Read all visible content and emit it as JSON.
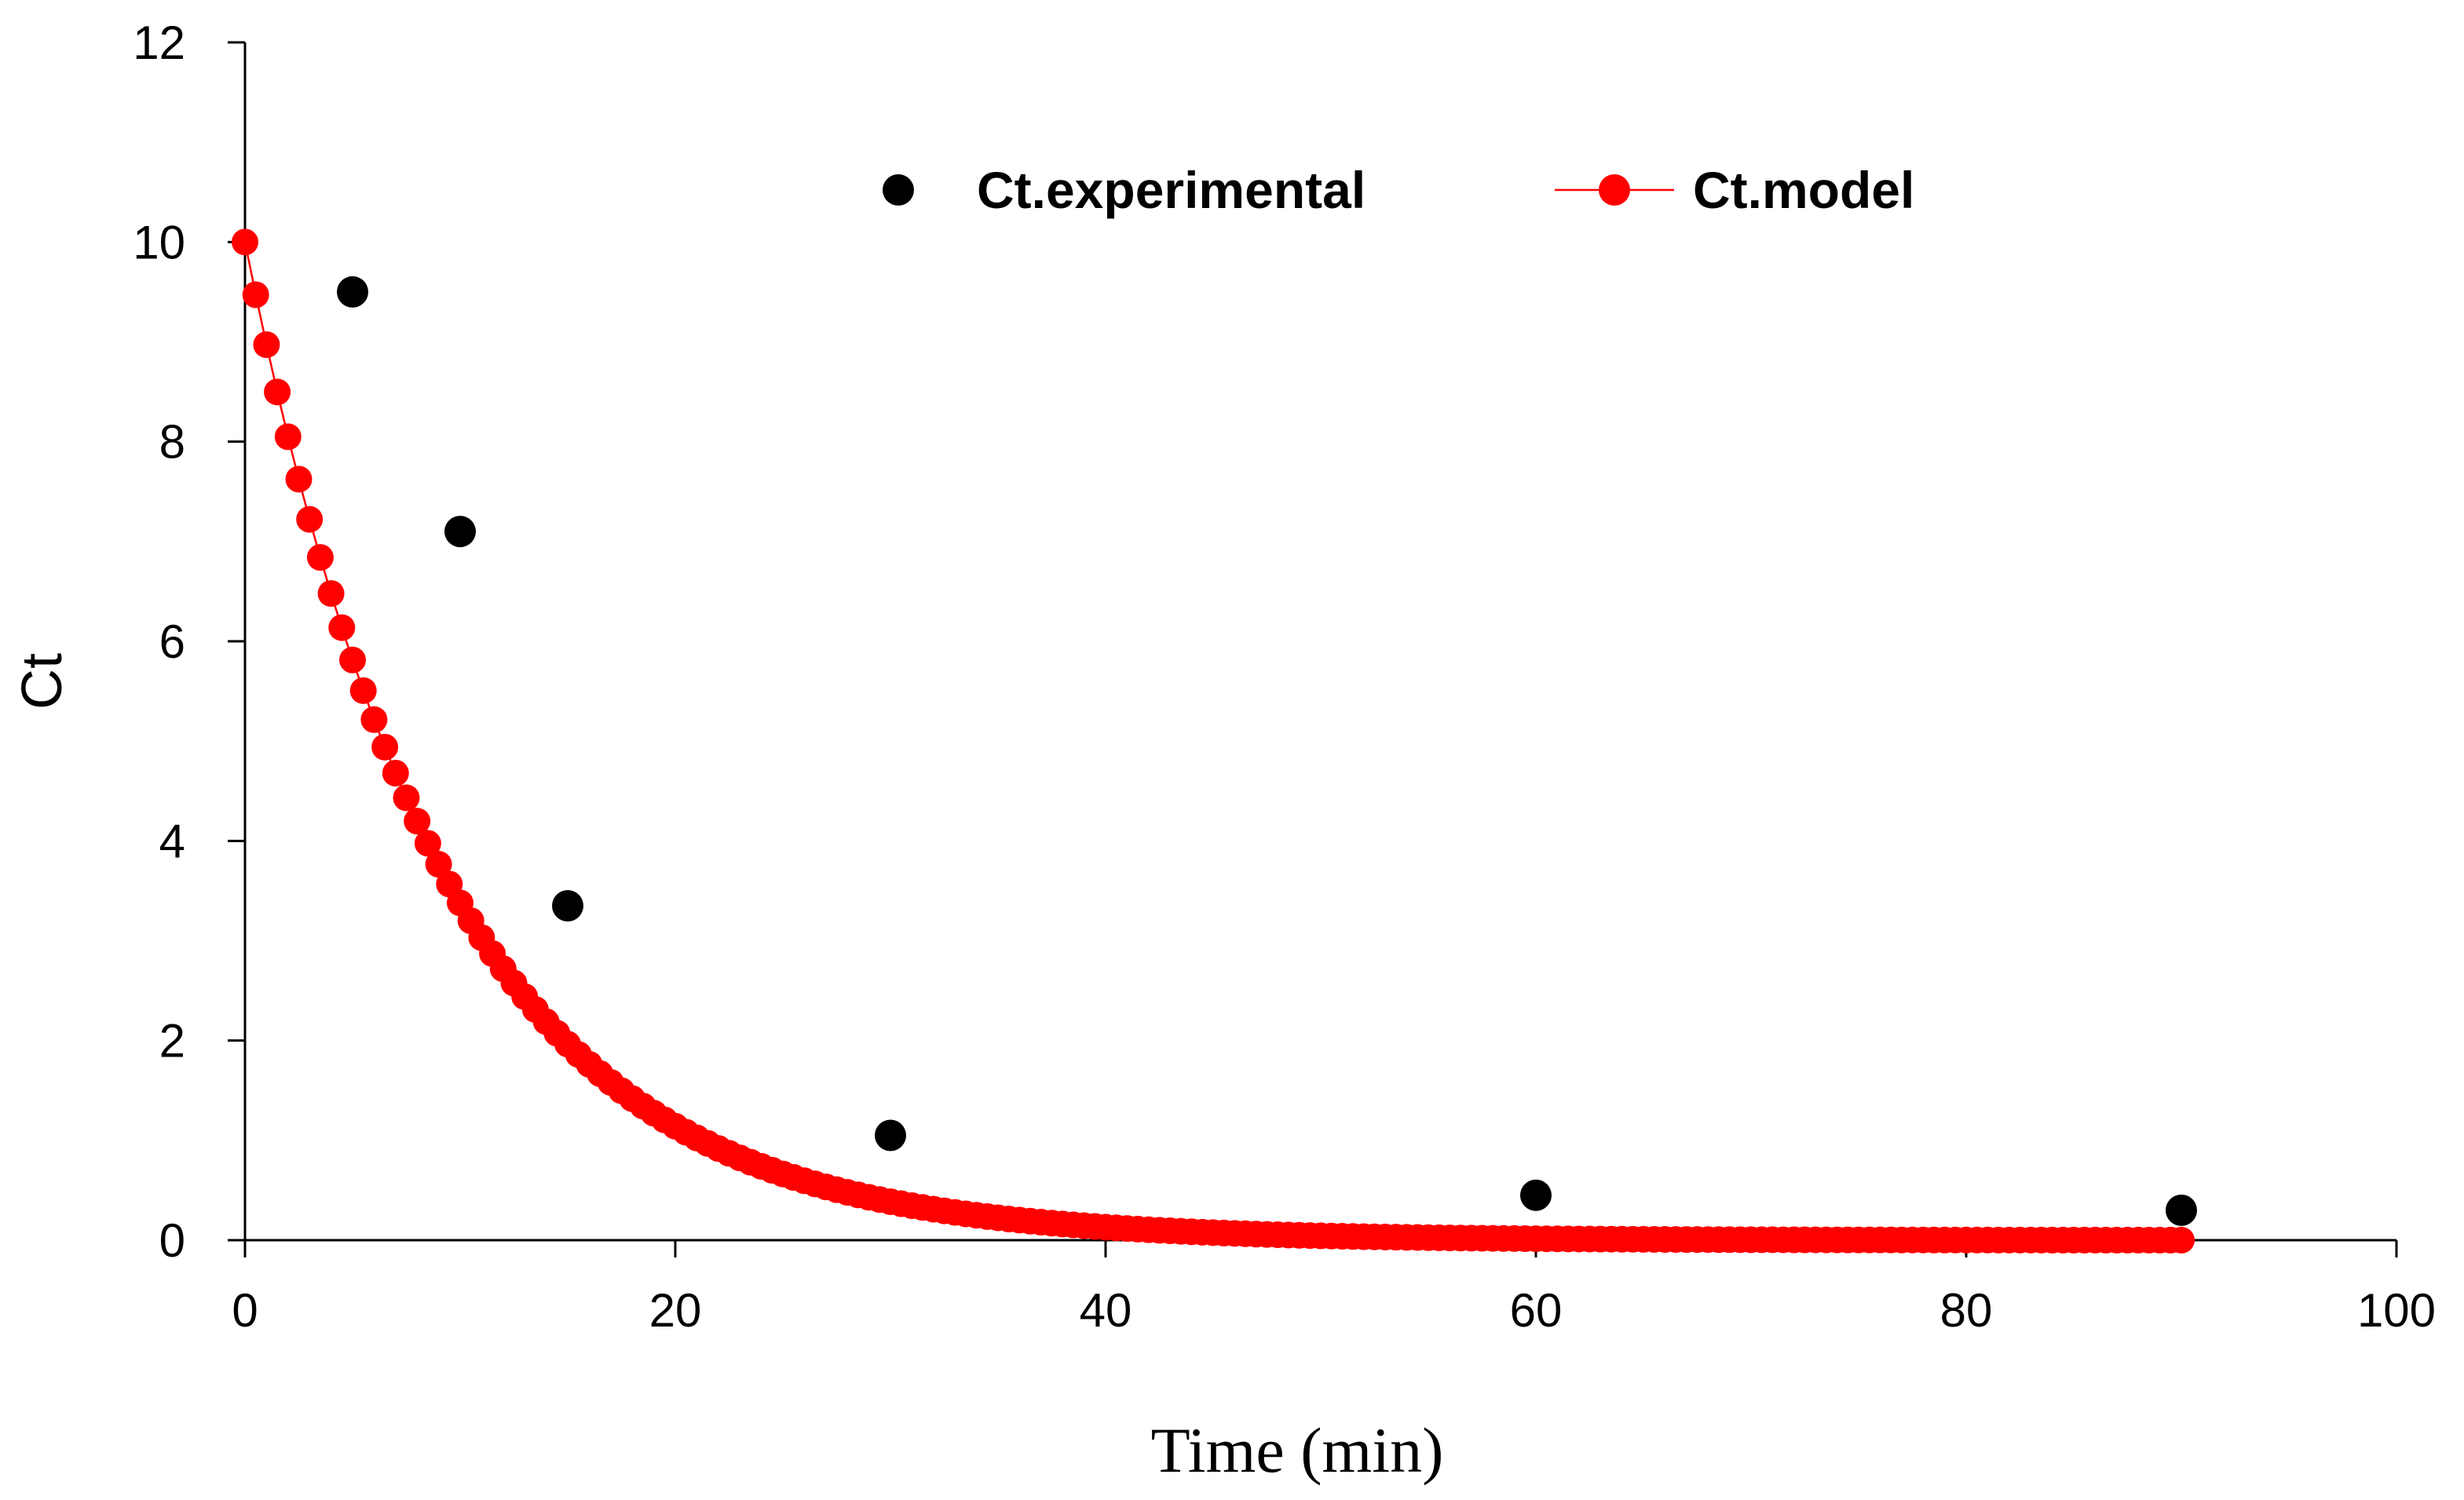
{
  "chart_data": {
    "type": "scatter",
    "xlabel": "Time (min)",
    "ylabel": "Ct",
    "xlim": [
      0,
      100
    ],
    "ylim": [
      0,
      12
    ],
    "xticks": [
      0,
      20,
      40,
      60,
      80,
      100
    ],
    "yticks": [
      0,
      2,
      4,
      6,
      8,
      10,
      12
    ],
    "grid": false,
    "legend_position": "top-center",
    "series": [
      {
        "name": "Ct.experimental",
        "kind": "scatter",
        "color": "#000000",
        "x": [
          5,
          10,
          15,
          30,
          60,
          90
        ],
        "y": [
          9.5,
          7.1,
          3.35,
          1.05,
          0.45,
          0.3
        ]
      },
      {
        "name": "Ct.model",
        "kind": "line-markers",
        "color": "#ff0000",
        "model": {
          "c0": 10,
          "k": 0.1085,
          "x_start": 0,
          "x_end": 90,
          "x_step": 0.5
        }
      }
    ]
  }
}
